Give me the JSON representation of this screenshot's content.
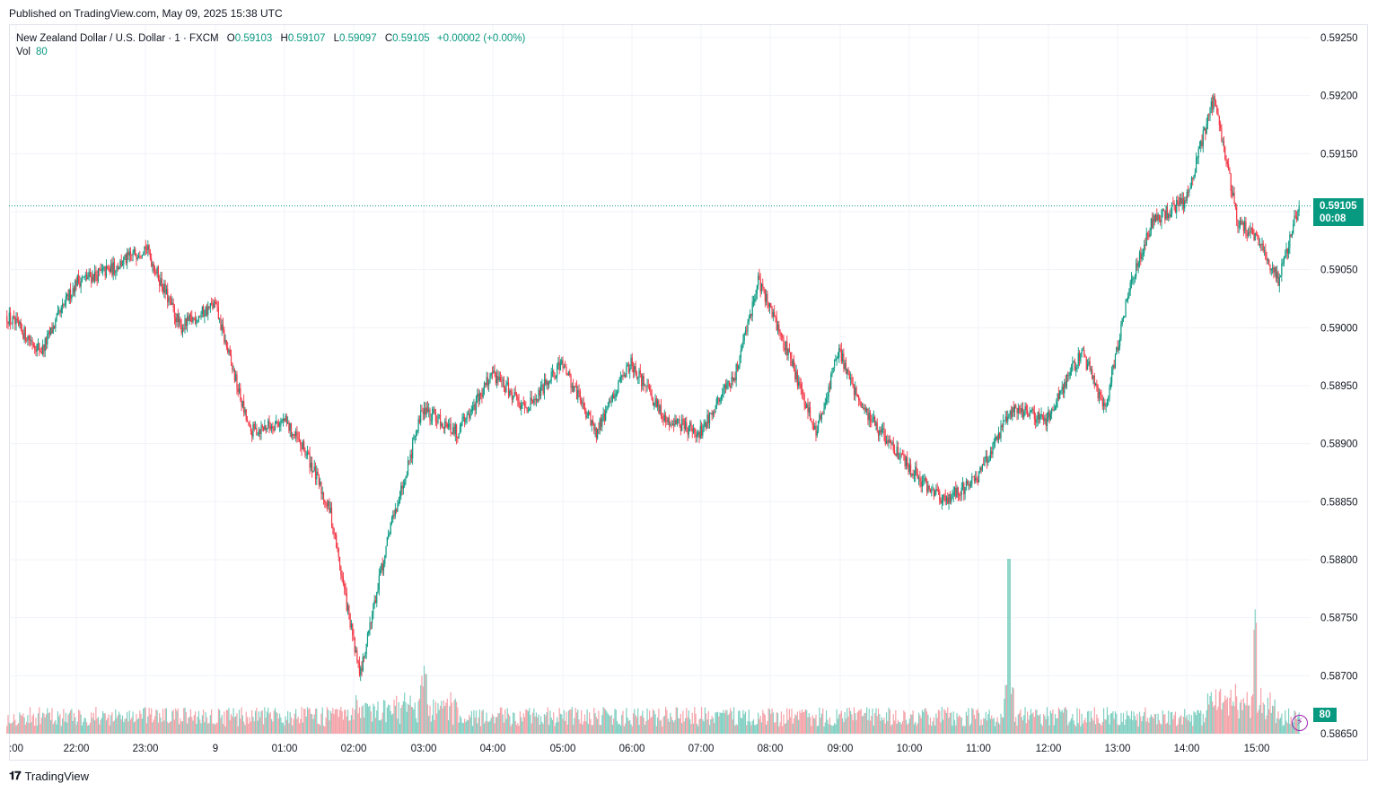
{
  "header": {
    "published": "Published on TradingView.com, May 09, 2025 15:38 UTC"
  },
  "legend": {
    "symbol": "New Zealand Dollar / U.S. Dollar · 1 · FXCM",
    "open_label": "O",
    "open": "0.59103",
    "high_label": "H",
    "high": "0.59107",
    "low_label": "L",
    "low": "0.59097",
    "close_label": "C",
    "close": "0.59105",
    "change": "+0.00002 (+0.00%)",
    "vol_label": "Vol",
    "vol": "80"
  },
  "price_tag": {
    "price": "0.59105",
    "countdown": "00:08"
  },
  "vol_tag": "80",
  "brand": "TradingView",
  "colors": {
    "up": "#089981",
    "down": "#f23645",
    "up_vol": "#7fcfc1",
    "down_vol": "#f4a2a8",
    "grid": "#f0f3fa"
  },
  "chart_data": {
    "type": "candlestick",
    "title": "New Zealand Dollar / U.S. Dollar · 1 · FXCM",
    "ylim": [
      0.5865,
      0.5925
    ],
    "y_ticks": [
      "0.59250",
      "0.59200",
      "0.59150",
      "0.59100",
      "0.59050",
      "0.59000",
      "0.58950",
      "0.58900",
      "0.58850",
      "0.58800",
      "0.58750",
      "0.58700",
      "0.58650"
    ],
    "x_ticks": [
      ":00",
      "22:00",
      "23:00",
      "9",
      "01:00",
      "02:00",
      "03:00",
      "04:00",
      "05:00",
      "06:00",
      "07:00",
      "08:00",
      "09:00",
      "10:00",
      "11:00",
      "12:00",
      "13:00",
      "14:00",
      "15:00"
    ],
    "last_price": 0.59105,
    "price_path": [
      {
        "t": "21:00",
        "v": 0.5901
      },
      {
        "t": "21:30",
        "v": 0.5898
      },
      {
        "t": "22:00",
        "v": 0.5904
      },
      {
        "t": "22:30",
        "v": 0.5905
      },
      {
        "t": "23:00",
        "v": 0.5907
      },
      {
        "t": "23:30",
        "v": 0.59
      },
      {
        "t": "00:00",
        "v": 0.5902
      },
      {
        "t": "00:30",
        "v": 0.5891
      },
      {
        "t": "01:00",
        "v": 0.5892
      },
      {
        "t": "01:20",
        "v": 0.5889
      },
      {
        "t": "01:40",
        "v": 0.5884
      },
      {
        "t": "02:05",
        "v": 0.587
      },
      {
        "t": "02:30",
        "v": 0.5882
      },
      {
        "t": "03:00",
        "v": 0.5893
      },
      {
        "t": "03:30",
        "v": 0.5891
      },
      {
        "t": "04:00",
        "v": 0.5896
      },
      {
        "t": "04:30",
        "v": 0.5893
      },
      {
        "t": "05:00",
        "v": 0.5897
      },
      {
        "t": "05:30",
        "v": 0.5891
      },
      {
        "t": "06:00",
        "v": 0.5897
      },
      {
        "t": "06:30",
        "v": 0.5892
      },
      {
        "t": "07:00",
        "v": 0.5891
      },
      {
        "t": "07:30",
        "v": 0.5896
      },
      {
        "t": "07:50",
        "v": 0.5904
      },
      {
        "t": "08:15",
        "v": 0.5898
      },
      {
        "t": "08:40",
        "v": 0.5891
      },
      {
        "t": "09:00",
        "v": 0.5898
      },
      {
        "t": "09:20",
        "v": 0.5893
      },
      {
        "t": "10:00",
        "v": 0.5888
      },
      {
        "t": "10:30",
        "v": 0.5885
      },
      {
        "t": "11:00",
        "v": 0.5887
      },
      {
        "t": "11:30",
        "v": 0.5893
      },
      {
        "t": "12:00",
        "v": 0.5892
      },
      {
        "t": "12:30",
        "v": 0.5898
      },
      {
        "t": "12:50",
        "v": 0.5893
      },
      {
        "t": "13:10",
        "v": 0.5903
      },
      {
        "t": "13:30",
        "v": 0.5909
      },
      {
        "t": "14:00",
        "v": 0.5911
      },
      {
        "t": "14:25",
        "v": 0.592
      },
      {
        "t": "14:45",
        "v": 0.5909
      },
      {
        "t": "15:00",
        "v": 0.5908
      },
      {
        "t": "15:20",
        "v": 0.5904
      },
      {
        "t": "15:38",
        "v": 0.59105
      }
    ],
    "volume": {
      "last": 80,
      "spikes": [
        {
          "t": "11:30",
          "v": "high"
        },
        {
          "t": "15:00",
          "v": "high"
        }
      ]
    }
  }
}
